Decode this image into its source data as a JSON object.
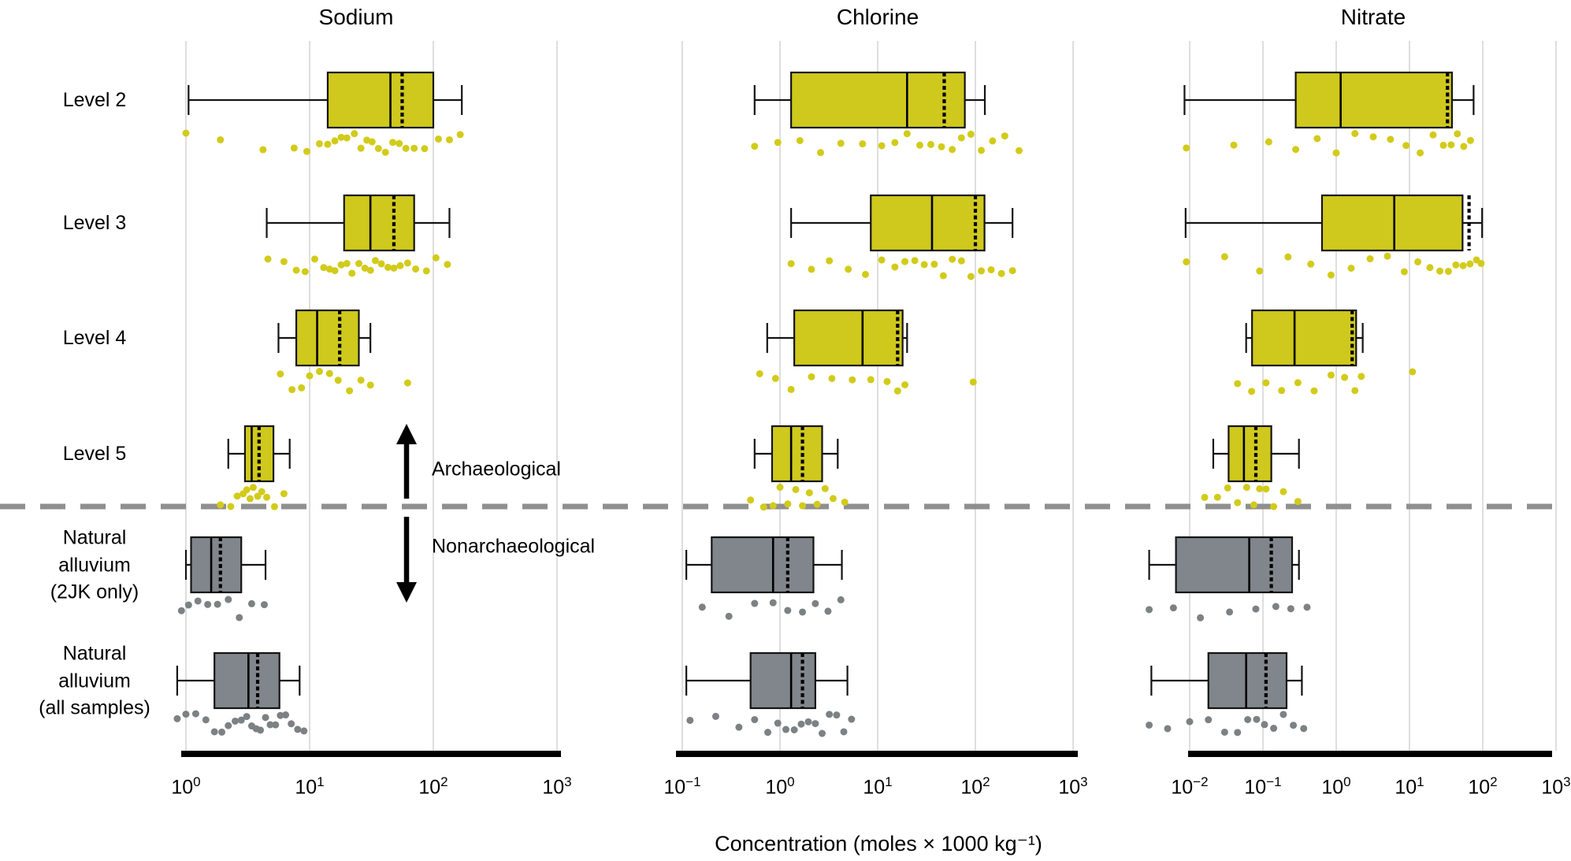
{
  "chart_data": {
    "type": "boxplot",
    "orientation": "horizontal",
    "x_scale": "log10",
    "xlabel": "Concentration (moles × 1000 kg⁻¹)",
    "groups": [
      "Level 2",
      "Level 3",
      "Level 4",
      "Level 5",
      "Natural\nalluvium\n(2JK only)",
      "Natural\nalluvium\n(all samples)"
    ],
    "group_classes": [
      "archaeological",
      "archaeological",
      "archaeological",
      "archaeological",
      "nonarchaeological",
      "nonarchaeological"
    ],
    "annotations": {
      "up": "Archaeological",
      "down": "Nonarchaeological"
    },
    "colors": {
      "archaeological": "#cfc81d",
      "archaeological_points": "#d2cb1a",
      "nonarchaeological": "#80868b",
      "nonarchaeological_points": "#7c8184",
      "box_stroke": "#141414",
      "median": "#000000",
      "mean_dashed": "#000000",
      "grid": "#dedede",
      "separator": "#8f8f8f",
      "axis": "#000000"
    },
    "panels": [
      {
        "title": "Sodium",
        "x_range_exp": [
          0,
          3
        ],
        "x_ticks_exp": [
          0,
          1,
          2,
          3
        ],
        "boxes": [
          {
            "whisker_lo": 1.05,
            "q1": 14,
            "median": 45,
            "mean": 56,
            "q3": 100,
            "whisker_hi": 170,
            "points": [
              1.0,
              1.9,
              4.2,
              7.5,
              9.5,
              12,
              14,
              16,
              18,
              20,
              23,
              26,
              29,
              32,
              36,
              41,
              47,
              53,
              60,
              70,
              85,
              110,
              135,
              165
            ]
          },
          {
            "whisker_lo": 4.5,
            "q1": 19,
            "median": 31,
            "mean": 48,
            "q3": 70,
            "whisker_hi": 135,
            "points": [
              4.6,
              6.2,
              7.8,
              9.2,
              11,
              13,
              14.5,
              16,
              18,
              20,
              22,
              25,
              28,
              31,
              34,
              38,
              43,
              48,
              54,
              62,
              72,
              88,
              105,
              130
            ]
          },
          {
            "whisker_lo": 5.6,
            "q1": 7.8,
            "median": 11.5,
            "mean": 17.5,
            "q3": 25,
            "whisker_hi": 31,
            "points": [
              5.8,
              7.2,
              8.6,
              10,
              12,
              14.5,
              17,
              21,
              26,
              31,
              62
            ]
          },
          {
            "whisker_lo": 2.2,
            "q1": 3.0,
            "median": 3.4,
            "mean": 3.9,
            "q3": 5.1,
            "whisker_hi": 6.9,
            "points": [
              1.9,
              2.3,
              2.6,
              2.9,
              3.1,
              3.3,
              3.5,
              3.8,
              4.1,
              4.5,
              5.2,
              6.2
            ]
          },
          {
            "whisker_lo": 1.0,
            "q1": 1.1,
            "median": 1.6,
            "mean": 1.9,
            "q3": 2.8,
            "whisker_hi": 4.4,
            "points": [
              0.92,
              1.05,
              1.25,
              1.5,
              1.8,
              2.2,
              2.7,
              3.4,
              4.3
            ]
          },
          {
            "whisker_lo": 0.85,
            "q1": 1.7,
            "median": 3.2,
            "mean": 3.8,
            "q3": 5.7,
            "whisker_hi": 8.3,
            "points": [
              0.85,
              1.0,
              1.2,
              1.45,
              1.7,
              1.95,
              2.2,
              2.5,
              2.8,
              3.1,
              3.4,
              3.7,
              4.0,
              4.4,
              4.8,
              5.3,
              5.8,
              6.4,
              7.1,
              8.0,
              9.0
            ]
          }
        ]
      },
      {
        "title": "Chlorine",
        "x_range_exp": [
          -1,
          3
        ],
        "x_ticks_exp": [
          -1,
          0,
          1,
          2,
          3
        ],
        "boxes": [
          {
            "whisker_lo": 0.55,
            "q1": 1.3,
            "median": 20,
            "mean": 48,
            "q3": 78,
            "whisker_hi": 125,
            "points": [
              0.55,
              0.95,
              1.6,
              2.6,
              4.2,
              7,
              11,
              15,
              20,
              27,
              35,
              45,
              58,
              72,
              90,
              115,
              150,
              200,
              280
            ]
          },
          {
            "whisker_lo": 1.3,
            "q1": 8.5,
            "median": 36,
            "mean": 100,
            "q3": 124,
            "whisker_hi": 240,
            "points": [
              1.3,
              2.1,
              3.2,
              5,
              7.5,
              11,
              15,
              19,
              24,
              30,
              38,
              47,
              58,
              72,
              90,
              115,
              145,
              185,
              240
            ]
          },
          {
            "whisker_lo": 0.74,
            "q1": 1.4,
            "median": 7,
            "mean": 16,
            "q3": 18,
            "whisker_hi": 20,
            "points": [
              0.62,
              0.9,
              1.3,
              2.1,
              3.4,
              5.5,
              8.5,
              12.5,
              16,
              19,
              95
            ]
          },
          {
            "whisker_lo": 0.55,
            "q1": 0.83,
            "median": 1.3,
            "mean": 1.7,
            "q3": 2.7,
            "whisker_hi": 3.9,
            "points": [
              0.5,
              0.68,
              0.85,
              1.0,
              1.2,
              1.45,
              1.7,
              2.0,
              2.4,
              2.9,
              3.5,
              4.6
            ]
          },
          {
            "whisker_lo": 0.11,
            "q1": 0.2,
            "median": 0.85,
            "mean": 1.2,
            "q3": 2.2,
            "whisker_hi": 4.3,
            "points": [
              0.16,
              0.3,
              0.55,
              0.85,
              1.2,
              1.7,
              2.3,
              3.1,
              4.2
            ]
          },
          {
            "whisker_lo": 0.11,
            "q1": 0.5,
            "median": 1.3,
            "mean": 1.7,
            "q3": 2.3,
            "whisker_hi": 4.9,
            "points": [
              0.12,
              0.22,
              0.38,
              0.55,
              0.75,
              0.95,
              1.15,
              1.4,
              1.65,
              1.95,
              2.3,
              2.7,
              3.2,
              3.8,
              4.5,
              5.4
            ]
          }
        ]
      },
      {
        "title": "Nitrate",
        "x_range_exp": [
          -2,
          3
        ],
        "x_ticks_exp": [
          -2,
          -1,
          0,
          1,
          2,
          3
        ],
        "boxes": [
          {
            "whisker_lo": 0.0085,
            "q1": 0.28,
            "median": 1.15,
            "mean": 33,
            "q3": 38,
            "whisker_hi": 75,
            "points": [
              0.009,
              0.04,
              0.12,
              0.28,
              0.55,
              1.0,
              1.8,
              3.2,
              5.5,
              9,
              14,
              21,
              29,
              37,
              45,
              55,
              68
            ]
          },
          {
            "whisker_lo": 0.0088,
            "q1": 0.64,
            "median": 6.2,
            "mean": 65,
            "q3": 53,
            "whisker_hi": 98,
            "points": [
              0.009,
              0.03,
              0.09,
              0.22,
              0.45,
              0.85,
              1.6,
              2.9,
              5,
              8.5,
              13,
              19,
              26,
              34,
              43,
              54,
              67,
              82,
              95
            ]
          },
          {
            "whisker_lo": 0.059,
            "q1": 0.071,
            "median": 0.27,
            "mean": 1.65,
            "q3": 1.87,
            "whisker_hi": 2.3,
            "points": [
              0.045,
              0.07,
              0.11,
              0.18,
              0.3,
              0.5,
              0.85,
              1.3,
              1.8,
              2.2,
              11
            ]
          },
          {
            "whisker_lo": 0.021,
            "q1": 0.034,
            "median": 0.055,
            "mean": 0.08,
            "q3": 0.13,
            "whisker_hi": 0.31,
            "points": [
              0.016,
              0.024,
              0.033,
              0.045,
              0.06,
              0.075,
              0.09,
              0.11,
              0.14,
              0.19,
              0.3
            ]
          },
          {
            "whisker_lo": 0.0028,
            "q1": 0.0065,
            "median": 0.065,
            "mean": 0.13,
            "q3": 0.25,
            "whisker_hi": 0.31,
            "points": [
              0.0028,
              0.006,
              0.014,
              0.035,
              0.08,
              0.15,
              0.24,
              0.4
            ]
          },
          {
            "whisker_lo": 0.003,
            "q1": 0.018,
            "median": 0.059,
            "mean": 0.11,
            "q3": 0.21,
            "whisker_hi": 0.34,
            "points": [
              0.0028,
              0.005,
              0.01,
              0.018,
              0.03,
              0.045,
              0.062,
              0.082,
              0.105,
              0.14,
              0.19,
              0.26,
              0.36
            ]
          }
        ]
      }
    ]
  }
}
